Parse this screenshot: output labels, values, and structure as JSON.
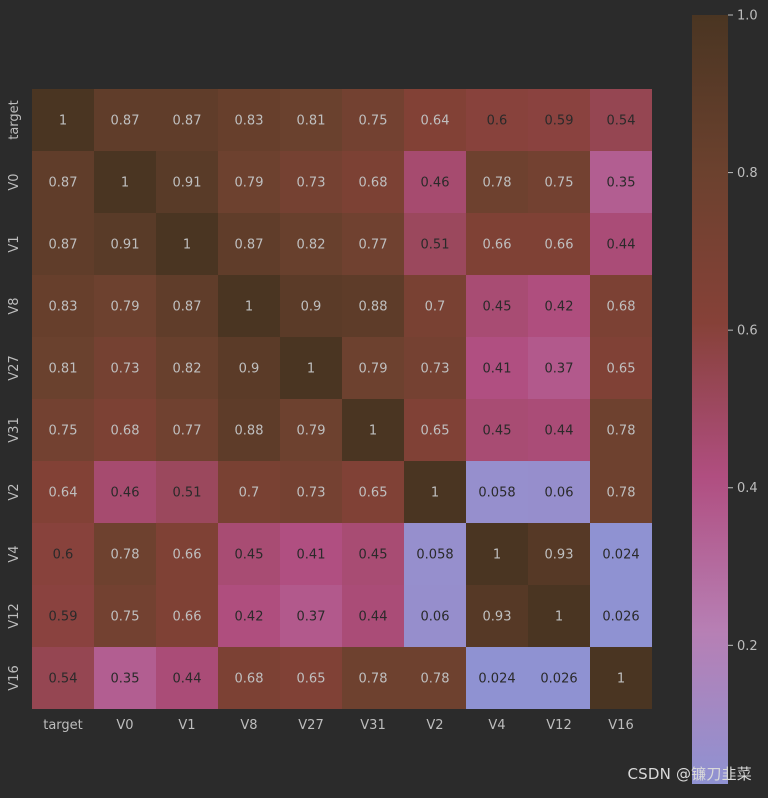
{
  "watermark": "CSDN @镰刀韭菜",
  "chart_data": {
    "type": "heatmap",
    "title": "",
    "xlabel": "",
    "ylabel": "",
    "labels": [
      "target",
      "V0",
      "V1",
      "V8",
      "V27",
      "V31",
      "V2",
      "V4",
      "V12",
      "V16"
    ],
    "matrix": [
      [
        "1",
        "0.87",
        "0.87",
        "0.83",
        "0.81",
        "0.75",
        "0.64",
        "0.6",
        "0.59",
        "0.54"
      ],
      [
        "0.87",
        "1",
        "0.91",
        "0.79",
        "0.73",
        "0.68",
        "0.46",
        "0.78",
        "0.75",
        "0.35"
      ],
      [
        "0.87",
        "0.91",
        "1",
        "0.87",
        "0.82",
        "0.77",
        "0.51",
        "0.66",
        "0.66",
        "0.44"
      ],
      [
        "0.83",
        "0.79",
        "0.87",
        "1",
        "0.9",
        "0.88",
        "0.7",
        "0.45",
        "0.42",
        "0.68"
      ],
      [
        "0.81",
        "0.73",
        "0.82",
        "0.9",
        "1",
        "0.79",
        "0.73",
        "0.41",
        "0.37",
        "0.65"
      ],
      [
        "0.75",
        "0.68",
        "0.77",
        "0.88",
        "0.79",
        "1",
        "0.65",
        "0.45",
        "0.44",
        "0.78"
      ],
      [
        "0.64",
        "0.46",
        "0.51",
        "0.7",
        "0.73",
        "0.65",
        "1",
        "0.058",
        "0.06",
        "0.78"
      ],
      [
        "0.6",
        "0.78",
        "0.66",
        "0.45",
        "0.41",
        "0.45",
        "0.058",
        "1",
        "0.93",
        "0.024"
      ],
      [
        "0.59",
        "0.75",
        "0.66",
        "0.42",
        "0.37",
        "0.44",
        "0.06",
        "0.93",
        "1",
        "0.026"
      ],
      [
        "0.54",
        "0.35",
        "0.44",
        "0.68",
        "0.65",
        "0.78",
        "0.78",
        "0.024",
        "0.026",
        "1"
      ]
    ],
    "colorbar": {
      "min": 0.024,
      "max": 1.0,
      "ticks": [
        "0.2",
        "0.4",
        "0.6",
        "0.8",
        "1.0"
      ],
      "colors": [
        "#8f92d2",
        "#b77fb4",
        "#b04e80",
        "#864138",
        "#6b412e",
        "#4a3522"
      ]
    },
    "grid": false,
    "legend": "colorbar-right"
  }
}
